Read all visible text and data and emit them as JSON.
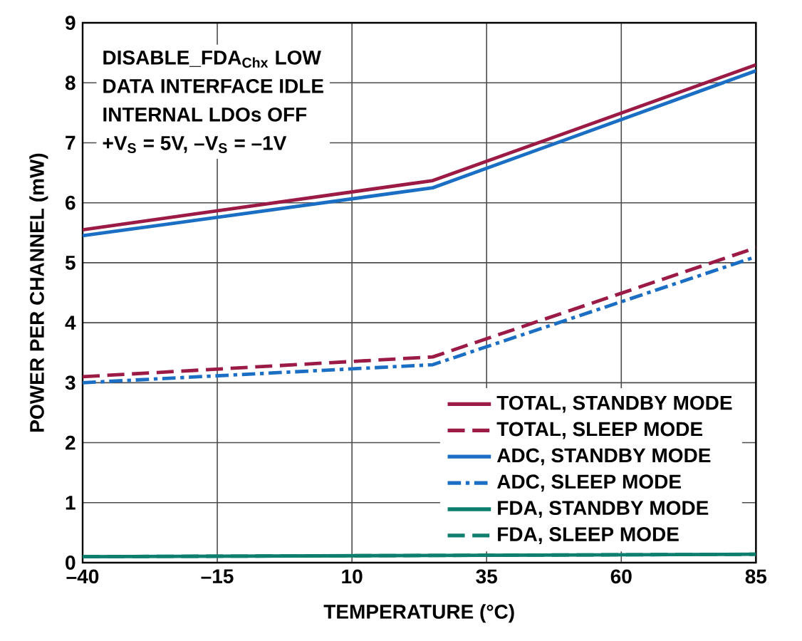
{
  "chart_data": {
    "type": "line",
    "xlabel": "TEMPERATURE (°C)",
    "ylabel": "POWER PER CHANNEL (mW)",
    "annotations": [
      "DISABLE_FDA$_{Chx}$ LOW",
      "DATA INTERFACE IDLE",
      "INTERNAL LDOs OFF",
      "+V$_{S}$ = 5V, –V$_{S}$ = –1V"
    ],
    "x": [
      -40,
      25,
      85
    ],
    "series": [
      {
        "name": "TOTAL, STANDBY MODE",
        "color": "#9b1b45",
        "line_style": "solid",
        "values": [
          5.55,
          6.37,
          8.3
        ]
      },
      {
        "name": "TOTAL, SLEEP MODE",
        "color": "#9b1b45",
        "line_style": "dashed",
        "values": [
          3.1,
          3.43,
          5.25
        ]
      },
      {
        "name": "ADC, STANDBY MODE",
        "color": "#1a6fc4",
        "line_style": "solid",
        "values": [
          5.45,
          6.25,
          8.2
        ]
      },
      {
        "name": "ADC, SLEEP MODE",
        "color": "#1a6fc4",
        "line_style": "dashdot",
        "values": [
          3.0,
          3.3,
          5.1
        ]
      },
      {
        "name": "FDA, STANDBY MODE",
        "color": "#0e7f6e",
        "line_style": "solid",
        "values": [
          0.1,
          0.12,
          0.14
        ]
      },
      {
        "name": "FDA, SLEEP MODE",
        "color": "#0e7f6e",
        "line_style": "dashed",
        "values": [
          0.1,
          0.12,
          0.14
        ]
      }
    ],
    "xlim": [
      -40,
      85
    ],
    "ylim": [
      0,
      9
    ],
    "xticks": [
      {
        "value": -40,
        "label": "–40"
      },
      {
        "value": -15,
        "label": "–15"
      },
      10,
      35,
      60,
      85
    ],
    "yticks": [
      0,
      1,
      2,
      3,
      4,
      5,
      6,
      7,
      8,
      9
    ],
    "grid": true,
    "legend": "bottom right",
    "marker": "none"
  }
}
